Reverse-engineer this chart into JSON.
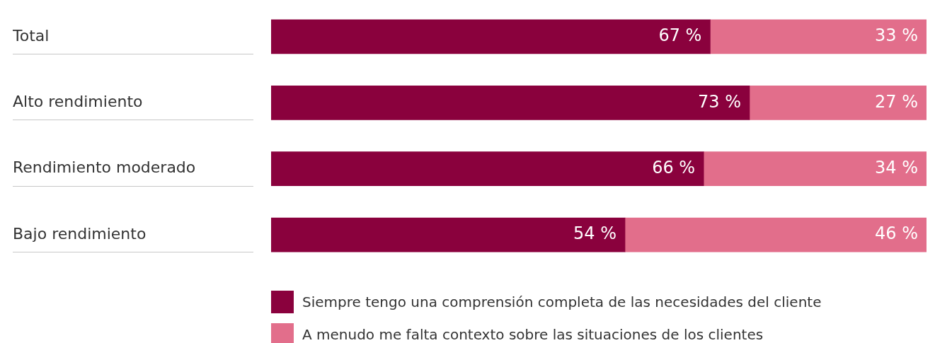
{
  "chart_data": {
    "type": "bar",
    "orientation": "horizontal",
    "stacked": true,
    "categories": [
      "Total",
      "Alto rendimiento",
      "Rendimiento moderado",
      "Bajo rendimiento"
    ],
    "series": [
      {
        "name": "Siempre tengo una comprensión completa de las necesidades del cliente",
        "color": "#8a013d",
        "values": [
          67,
          73,
          66,
          54
        ],
        "value_labels": [
          "67 %",
          "73 %",
          "66 %",
          "54 %"
        ]
      },
      {
        "name": "A menudo me falta contexto sobre las situaciones de los clientes",
        "color": "#e26e8b",
        "values": [
          33,
          27,
          34,
          46
        ],
        "value_labels": [
          "33 %",
          "27 %",
          "34 %",
          "46 %"
        ]
      }
    ],
    "legend": "bottom"
  }
}
